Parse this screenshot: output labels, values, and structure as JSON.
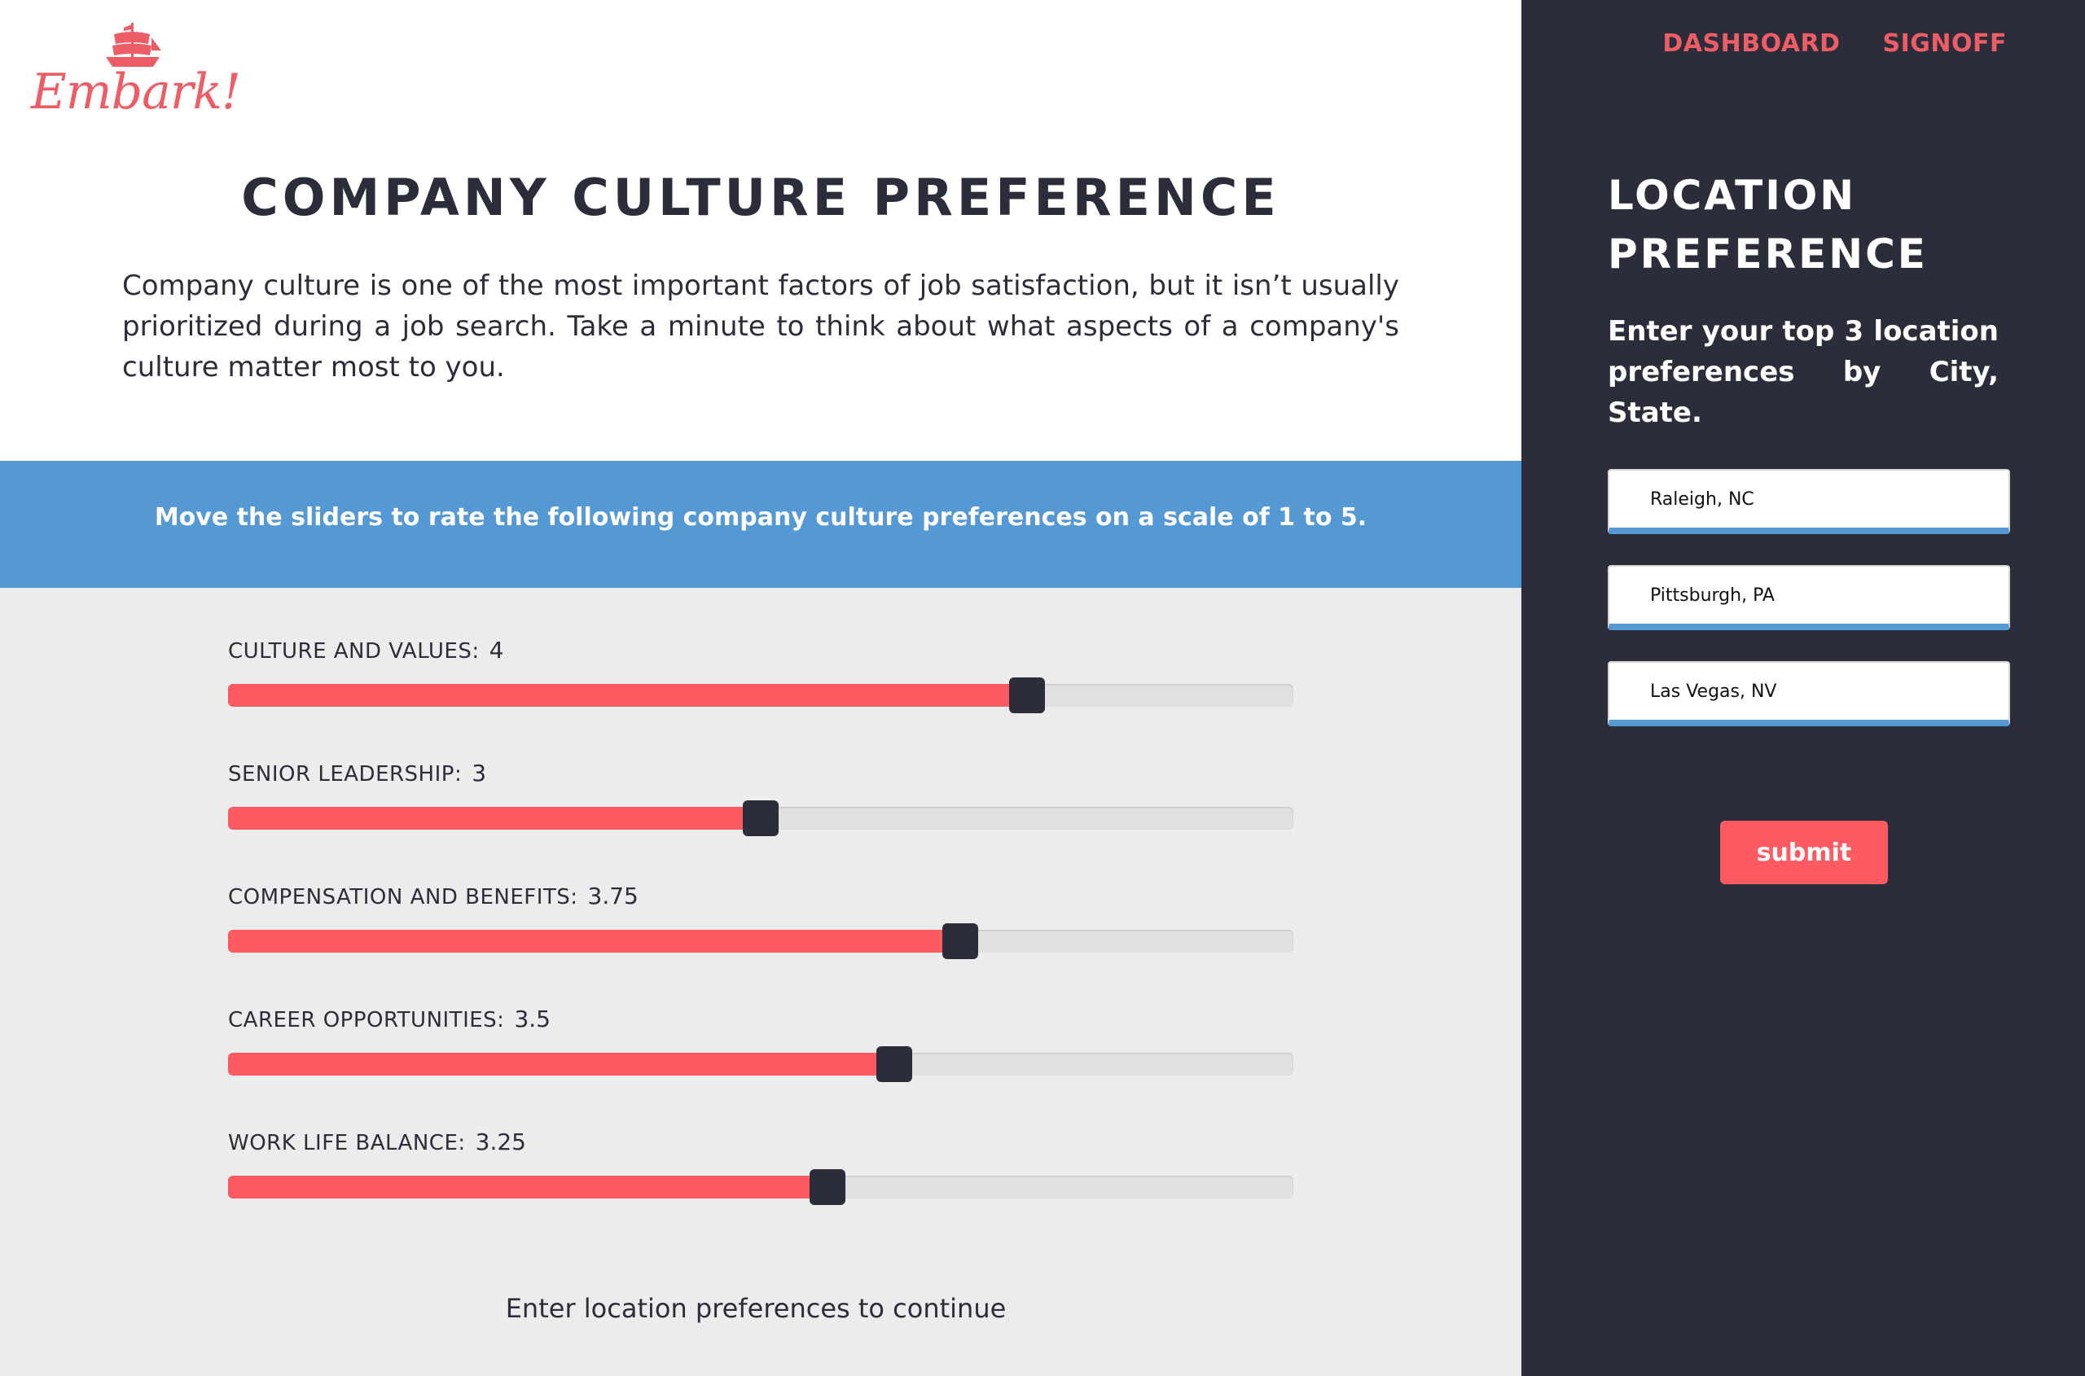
{
  "brand": {
    "logo_text": "Embark!",
    "color": "#ee5d66"
  },
  "nav": {
    "dashboard": "DASHBOARD",
    "signoff": "SIGNOFF"
  },
  "main": {
    "title": "COMPANY CULTURE PREFERENCE",
    "intro": "Company culture is one of the most important factors of job satisfaction, but it isn’t usually prioritized during a job search. Take a minute to think about what aspects of a company's culture matter most to you.",
    "banner": "Move the sliders to rate the following company culture preferences on a scale of 1 to 5.",
    "slider_min": 1,
    "slider_max": 5,
    "sliders": [
      {
        "label": "CULTURE AND VALUES:",
        "value": "4"
      },
      {
        "label": "SENIOR LEADERSHIP:",
        "value": "3"
      },
      {
        "label": "COMPENSATION AND BENEFITS:",
        "value": "3.75"
      },
      {
        "label": "CAREER OPPORTUNITIES:",
        "value": "3.5"
      },
      {
        "label": "WORK LIFE BALANCE:",
        "value": "3.25"
      }
    ],
    "continue_text": "Enter location preferences to continue"
  },
  "sidebar": {
    "title": "LOCATION PREFERENCE",
    "description": "Enter your top 3 location preferences by City, State.",
    "locations": [
      "Raleigh, NC",
      "Pittsburgh, PA",
      "Las Vegas, NV"
    ],
    "submit_label": "submit"
  },
  "colors": {
    "accent": "#fd5a62",
    "banner": "#5498d4",
    "dark": "#2b2e3a",
    "slider_bg": "#ececec"
  }
}
